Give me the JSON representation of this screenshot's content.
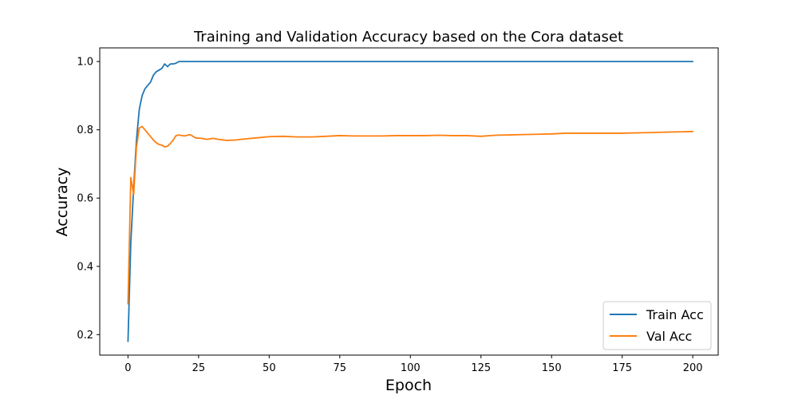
{
  "chart_data": {
    "type": "line",
    "title": "Training and Validation Accuracy based on the Cora dataset",
    "xlabel": "Epoch",
    "ylabel": "Accuracy",
    "xlim": [
      -10,
      209
    ],
    "ylim": [
      0.14,
      1.04
    ],
    "xticks": [
      0,
      25,
      50,
      75,
      100,
      125,
      150,
      175,
      200
    ],
    "yticks": [
      0.2,
      0.4,
      0.6,
      0.8,
      1.0
    ],
    "ytick_labels": [
      "0.2",
      "0.4",
      "0.6",
      "0.8",
      "1.0"
    ],
    "grid": false,
    "legend": {
      "position": "lower-right"
    },
    "series": [
      {
        "name": "Train Acc",
        "color": "#1f77b4",
        "points": [
          [
            0,
            0.18
          ],
          [
            1,
            0.47
          ],
          [
            2,
            0.63
          ],
          [
            3,
            0.77
          ],
          [
            4,
            0.86
          ],
          [
            5,
            0.9
          ],
          [
            6,
            0.92
          ],
          [
            7,
            0.93
          ],
          [
            8,
            0.94
          ],
          [
            9,
            0.96
          ],
          [
            10,
            0.97
          ],
          [
            11,
            0.975
          ],
          [
            12,
            0.98
          ],
          [
            13,
            0.993
          ],
          [
            14,
            0.985
          ],
          [
            15,
            0.993
          ],
          [
            16,
            0.993
          ],
          [
            17,
            0.995
          ],
          [
            18,
            1.0
          ],
          [
            200,
            1.0
          ]
        ]
      },
      {
        "name": "Val Acc",
        "color": "#ff7f0e",
        "points": [
          [
            0,
            0.29
          ],
          [
            1,
            0.66
          ],
          [
            2,
            0.61
          ],
          [
            3,
            0.75
          ],
          [
            4,
            0.805
          ],
          [
            5,
            0.81
          ],
          [
            6,
            0.8
          ],
          [
            7,
            0.79
          ],
          [
            8,
            0.78
          ],
          [
            9,
            0.77
          ],
          [
            10,
            0.762
          ],
          [
            11,
            0.757
          ],
          [
            12,
            0.755
          ],
          [
            13,
            0.75
          ],
          [
            14,
            0.752
          ],
          [
            15,
            0.76
          ],
          [
            16,
            0.77
          ],
          [
            17,
            0.783
          ],
          [
            18,
            0.785
          ],
          [
            20,
            0.782
          ],
          [
            22,
            0.786
          ],
          [
            24,
            0.776
          ],
          [
            26,
            0.775
          ],
          [
            28,
            0.772
          ],
          [
            30,
            0.775
          ],
          [
            32,
            0.772
          ],
          [
            35,
            0.769
          ],
          [
            38,
            0.77
          ],
          [
            40,
            0.772
          ],
          [
            45,
            0.776
          ],
          [
            50,
            0.78
          ],
          [
            55,
            0.781
          ],
          [
            60,
            0.779
          ],
          [
            65,
            0.779
          ],
          [
            70,
            0.781
          ],
          [
            75,
            0.783
          ],
          [
            80,
            0.782
          ],
          [
            85,
            0.782
          ],
          [
            90,
            0.782
          ],
          [
            95,
            0.783
          ],
          [
            100,
            0.783
          ],
          [
            105,
            0.783
          ],
          [
            110,
            0.784
          ],
          [
            115,
            0.783
          ],
          [
            120,
            0.783
          ],
          [
            125,
            0.781
          ],
          [
            130,
            0.784
          ],
          [
            135,
            0.785
          ],
          [
            140,
            0.786
          ],
          [
            145,
            0.787
          ],
          [
            150,
            0.788
          ],
          [
            155,
            0.79
          ],
          [
            160,
            0.79
          ],
          [
            165,
            0.79
          ],
          [
            170,
            0.79
          ],
          [
            175,
            0.79
          ],
          [
            180,
            0.791
          ],
          [
            185,
            0.792
          ],
          [
            190,
            0.793
          ],
          [
            195,
            0.794
          ],
          [
            200,
            0.795
          ]
        ]
      }
    ]
  }
}
